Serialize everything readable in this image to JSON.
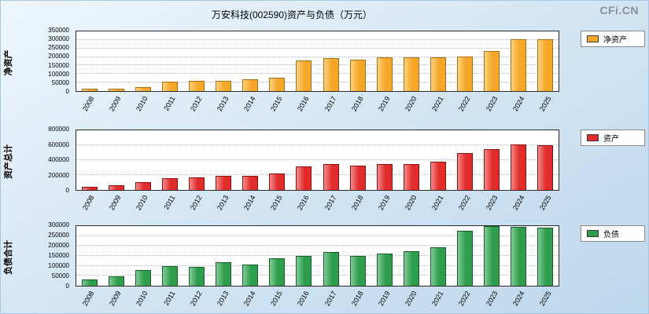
{
  "page": {
    "title": "万安科技(002590)资产与负债（万元）",
    "watermark": "CFi.CN"
  },
  "chart_data": [
    {
      "type": "bar",
      "ylabel": "净资产",
      "legend": "净资产",
      "color": "#F5A72A",
      "color_light": "#FBD37E",
      "border": "#A96F10",
      "ylim": [
        0,
        350000
      ],
      "yticks": [
        0,
        50000,
        100000,
        150000,
        200000,
        250000,
        300000,
        350000
      ],
      "categories": [
        "2008",
        "2009",
        "2010",
        "2011",
        "2012",
        "2013",
        "2014",
        "2015",
        "2016",
        "2017",
        "2018",
        "2019",
        "2020",
        "2021",
        "2022",
        "2023",
        "2024",
        "2025"
      ],
      "values": [
        13000,
        14000,
        25000,
        55000,
        60000,
        62000,
        67000,
        80000,
        180000,
        195000,
        185000,
        200000,
        200000,
        197000,
        205000,
        235000,
        305000,
        303000
      ]
    },
    {
      "type": "bar",
      "ylabel": "资产总计",
      "legend": "资产",
      "color": "#E22B2B",
      "color_light": "#F28B8B",
      "border": "#871111",
      "ylim": [
        0,
        800000
      ],
      "yticks": [
        0,
        200000,
        400000,
        600000,
        800000
      ],
      "categories": [
        "2008",
        "2009",
        "2010",
        "2011",
        "2012",
        "2013",
        "2014",
        "2015",
        "2016",
        "2017",
        "2018",
        "2019",
        "2020",
        "2021",
        "2022",
        "2023",
        "2024",
        "2025"
      ],
      "values": [
        46000,
        65000,
        110000,
        155000,
        165000,
        185000,
        190000,
        225000,
        320000,
        345000,
        330000,
        350000,
        352000,
        380000,
        490000,
        545000,
        615000,
        600000
      ]
    },
    {
      "type": "bar",
      "ylabel": "负债合计",
      "legend": "负债",
      "color": "#2E9E4D",
      "color_light": "#84CB97",
      "border": "#155E2B",
      "ylim": [
        0,
        300000
      ],
      "yticks": [
        0,
        50000,
        100000,
        150000,
        200000,
        250000,
        300000
      ],
      "categories": [
        "2008",
        "2009",
        "2010",
        "2011",
        "2012",
        "2013",
        "2014",
        "2015",
        "2016",
        "2017",
        "2018",
        "2019",
        "2020",
        "2021",
        "2022",
        "2023",
        "2024",
        "2025"
      ],
      "values": [
        33000,
        48000,
        78000,
        100000,
        95000,
        120000,
        108000,
        140000,
        152000,
        168000,
        150000,
        162000,
        172000,
        195000,
        278000,
        300000,
        296000,
        293000
      ]
    }
  ]
}
